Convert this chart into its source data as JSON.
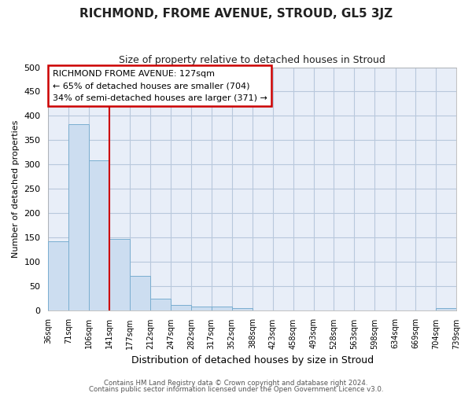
{
  "title": "RICHMOND, FROME AVENUE, STROUD, GL5 3JZ",
  "subtitle": "Size of property relative to detached houses in Stroud",
  "xlabel": "Distribution of detached houses by size in Stroud",
  "ylabel": "Number of detached properties",
  "bar_color": "#ccddf0",
  "bar_edge_color": "#7aaed0",
  "background_color": "#ffffff",
  "plot_bg_color": "#e8eef8",
  "grid_color": "#b8c8dc",
  "bin_edges": [
    36,
    71,
    106,
    141,
    177,
    212,
    247,
    282,
    317,
    352,
    388,
    423,
    458,
    493,
    528,
    563,
    598,
    634,
    669,
    704,
    739
  ],
  "bin_labels": [
    "36sqm",
    "71sqm",
    "106sqm",
    "141sqm",
    "177sqm",
    "212sqm",
    "247sqm",
    "282sqm",
    "317sqm",
    "352sqm",
    "388sqm",
    "423sqm",
    "458sqm",
    "493sqm",
    "528sqm",
    "563sqm",
    "598sqm",
    "634sqm",
    "669sqm",
    "704sqm",
    "739sqm"
  ],
  "bar_heights": [
    142,
    383,
    308,
    147,
    70,
    23,
    10,
    8,
    8,
    4,
    0,
    0,
    0,
    0,
    0,
    0,
    0,
    0,
    0,
    4
  ],
  "ylim": [
    0,
    500
  ],
  "yticks": [
    0,
    50,
    100,
    150,
    200,
    250,
    300,
    350,
    400,
    450,
    500
  ],
  "vline_x": 141,
  "vline_color": "#cc0000",
  "annotation_title": "RICHMOND FROME AVENUE: 127sqm",
  "annotation_line1": "← 65% of detached houses are smaller (704)",
  "annotation_line2": "34% of semi-detached houses are larger (371) →",
  "annotation_box_facecolor": "#ffffff",
  "annotation_box_edgecolor": "#cc0000",
  "footer_line1": "Contains HM Land Registry data © Crown copyright and database right 2024.",
  "footer_line2": "Contains public sector information licensed under the Open Government Licence v3.0."
}
